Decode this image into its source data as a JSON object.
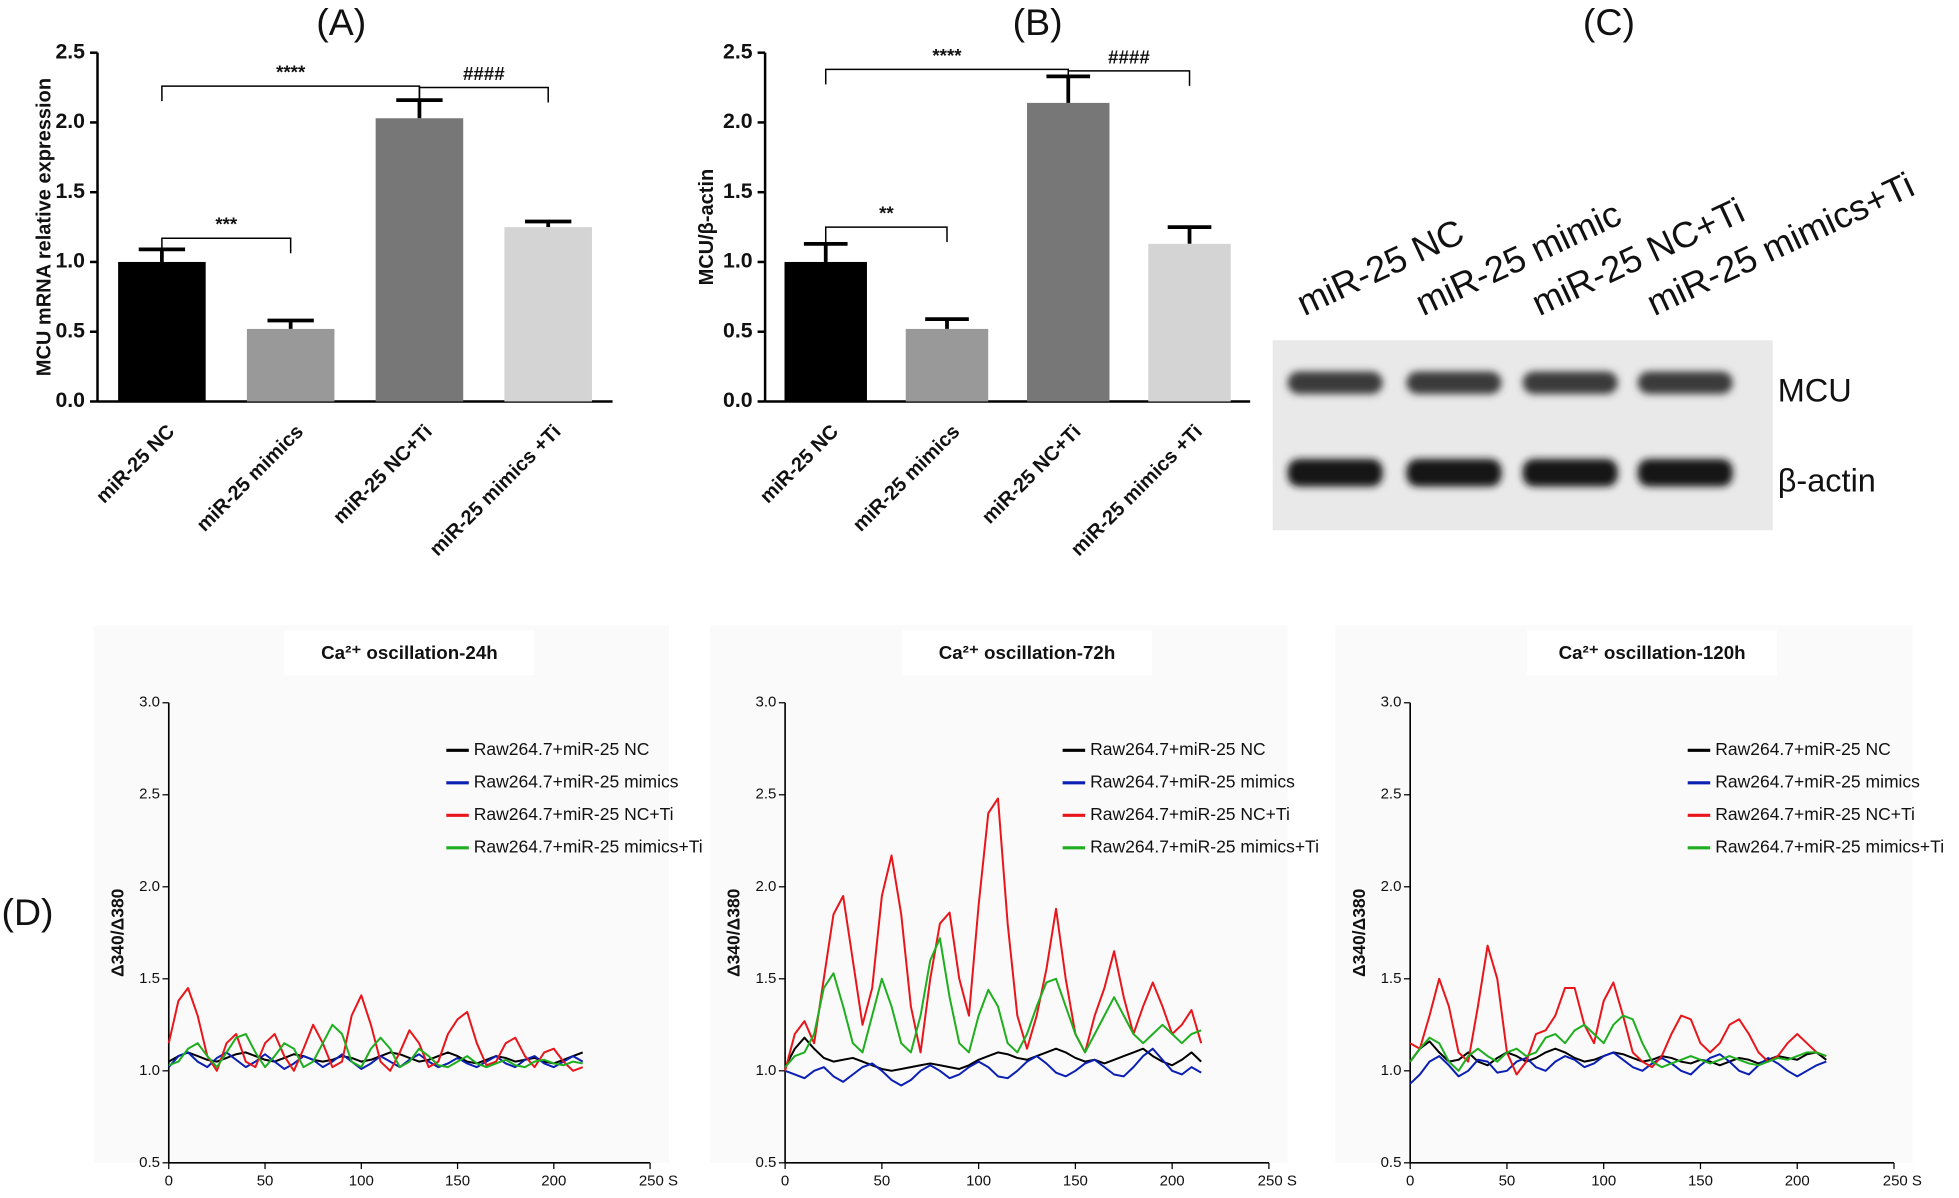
{
  "chart_data": [
    {
      "type": "bar",
      "title": "(A)",
      "y_label": "MCU mRNA relative expression",
      "categories": [
        "miR-25 NC",
        "miR-25 mimics",
        "miR-25 NC+Ti",
        "miR-25 mimics +Ti"
      ],
      "values": [
        1.0,
        0.52,
        2.03,
        1.25
      ],
      "errors": [
        0.09,
        0.06,
        0.13,
        0.04
      ],
      "colors": [
        "#000000",
        "#999999",
        "#777777",
        "#d4d4d4"
      ],
      "ylim": [
        0,
        2.5
      ],
      "yticks": [
        {
          "value": 0,
          "label": "0.0"
        },
        0.5,
        {
          "value": 1,
          "label": "1.0"
        },
        1.5,
        {
          "value": 2,
          "label": "2.0"
        },
        2.5
      ],
      "annotations": [
        "****",
        "####",
        "***"
      ]
    },
    {
      "type": "bar",
      "title": "(B)",
      "y_label": "MCU/β-actin",
      "categories": [
        "miR-25 NC",
        "miR-25 mimics",
        "miR-25 NC+Ti",
        "miR-25 mimics +Ti"
      ],
      "values": [
        1.0,
        0.52,
        2.14,
        1.13
      ],
      "errors": [
        0.13,
        0.07,
        0.19,
        0.12
      ],
      "colors": [
        "#000000",
        "#999999",
        "#777777",
        "#d4d4d4"
      ],
      "ylim": [
        0,
        2.5
      ],
      "yticks": [
        {
          "value": 0,
          "label": "0.0"
        },
        0.5,
        {
          "value": 1,
          "label": "1.0"
        },
        1.5,
        {
          "value": 2,
          "label": "2.0"
        },
        2.5
      ],
      "annotations": [
        "****",
        "####",
        "**"
      ]
    },
    {
      "type": "blot",
      "title": "(C)",
      "lanes": [
        "miR-25 NC",
        "miR-25 mimic",
        "miR-25 NC+Ti",
        "miR-25 mimics+Ti"
      ],
      "bands": [
        "MCU",
        "β-actin"
      ]
    },
    {
      "type": "line",
      "panel_label": "(D)",
      "title": "Ca²⁺ oscillation-24h",
      "y_label": "Δ340/Δ380",
      "legend": "upper right",
      "x": [
        0,
        5,
        10,
        15,
        20,
        25,
        30,
        35,
        40,
        45,
        50,
        55,
        60,
        65,
        70,
        75,
        80,
        85,
        90,
        95,
        100,
        105,
        110,
        115,
        120,
        125,
        130,
        135,
        140,
        145,
        150,
        155,
        160,
        165,
        170,
        175,
        180,
        185,
        190,
        195,
        200,
        205,
        210,
        215
      ],
      "xlim": [
        0,
        250
      ],
      "xticks": [
        0,
        50,
        100,
        150,
        200,
        {
          "value": 250,
          "label": "250 S"
        }
      ],
      "ylim": [
        0.5,
        3.0
      ],
      "yticks": [
        0.5,
        {
          "value": 1,
          "label": "1.0"
        },
        1.5,
        {
          "value": 2,
          "label": "2.0"
        },
        2.5,
        {
          "value": 3,
          "label": "3.0"
        }
      ],
      "series": [
        {
          "name": "Raw264.7+miR-25 NC",
          "color": "#000000",
          "values": [
            1.05,
            1.08,
            1.1,
            1.08,
            1.06,
            1.05,
            1.07,
            1.09,
            1.1,
            1.08,
            1.06,
            1.05,
            1.07,
            1.09,
            1.08,
            1.06,
            1.05,
            1.06,
            1.08,
            1.07,
            1.05,
            1.06,
            1.08,
            1.1,
            1.09,
            1.07,
            1.05,
            1.06,
            1.08,
            1.1,
            1.08,
            1.05,
            1.04,
            1.06,
            1.08,
            1.07,
            1.05,
            1.06,
            1.07,
            1.05,
            1.04,
            1.06,
            1.08,
            1.1
          ]
        },
        {
          "name": "Raw264.7+miR-25 mimics",
          "color": "#0b1fb3",
          "values": [
            1.02,
            1.08,
            1.1,
            1.05,
            1.02,
            1.07,
            1.1,
            1.06,
            1.02,
            1.05,
            1.09,
            1.05,
            1.01,
            1.04,
            1.08,
            1.06,
            1.02,
            1.05,
            1.09,
            1.05,
            1.01,
            1.04,
            1.08,
            1.05,
            1.02,
            1.06,
            1.09,
            1.05,
            1.02,
            1.04,
            1.07,
            1.04,
            1.02,
            1.05,
            1.08,
            1.04,
            1.02,
            1.06,
            1.08,
            1.04,
            1.02,
            1.05,
            1.08,
            1.05
          ]
        },
        {
          "name": "Raw264.7+miR-25 NC+Ti",
          "color": "#e8161b",
          "values": [
            1.15,
            1.38,
            1.45,
            1.3,
            1.08,
            1.0,
            1.15,
            1.2,
            1.05,
            1.02,
            1.15,
            1.2,
            1.08,
            1.0,
            1.12,
            1.25,
            1.15,
            1.02,
            1.05,
            1.3,
            1.41,
            1.25,
            1.05,
            1.0,
            1.1,
            1.22,
            1.15,
            1.02,
            1.05,
            1.2,
            1.28,
            1.32,
            1.15,
            1.03,
            1.05,
            1.15,
            1.18,
            1.08,
            1.02,
            1.1,
            1.12,
            1.05,
            1.0,
            1.02
          ]
        },
        {
          "name": "Raw264.7+miR-25 mimics+Ti",
          "color": "#1fae1f",
          "values": [
            1.03,
            1.05,
            1.12,
            1.15,
            1.08,
            1.02,
            1.1,
            1.18,
            1.2,
            1.1,
            1.02,
            1.08,
            1.15,
            1.12,
            1.02,
            1.05,
            1.15,
            1.25,
            1.2,
            1.05,
            1.02,
            1.12,
            1.18,
            1.12,
            1.02,
            1.05,
            1.12,
            1.08,
            1.03,
            1.02,
            1.05,
            1.08,
            1.04,
            1.02,
            1.04,
            1.06,
            1.03,
            1.02,
            1.05,
            1.06,
            1.04,
            1.03,
            1.05,
            1.04
          ]
        }
      ]
    },
    {
      "type": "line",
      "title": "Ca²⁺ oscillation-72h",
      "y_label": "Δ340/Δ380",
      "legend": "upper right",
      "x": [
        0,
        5,
        10,
        15,
        20,
        25,
        30,
        35,
        40,
        45,
        50,
        55,
        60,
        65,
        70,
        75,
        80,
        85,
        90,
        95,
        100,
        105,
        110,
        115,
        120,
        125,
        130,
        135,
        140,
        145,
        150,
        155,
        160,
        165,
        170,
        175,
        180,
        185,
        190,
        195,
        200,
        205,
        210,
        215
      ],
      "xlim": [
        0,
        250
      ],
      "xticks": [
        0,
        50,
        100,
        150,
        200,
        {
          "value": 250,
          "label": "250 S"
        }
      ],
      "ylim": [
        0.5,
        3.0
      ],
      "yticks": [
        0.5,
        {
          "value": 1,
          "label": "1.0"
        },
        1.5,
        {
          "value": 2,
          "label": "2.0"
        },
        2.5,
        {
          "value": 3,
          "label": "3.0"
        }
      ],
      "series": [
        {
          "name": "Raw264.7+miR-25 NC",
          "color": "#000000",
          "values": [
            1.02,
            1.12,
            1.18,
            1.12,
            1.07,
            1.05,
            1.06,
            1.07,
            1.05,
            1.03,
            1.01,
            1.0,
            1.01,
            1.02,
            1.03,
            1.04,
            1.03,
            1.02,
            1.01,
            1.03,
            1.06,
            1.08,
            1.1,
            1.09,
            1.07,
            1.06,
            1.08,
            1.1,
            1.12,
            1.1,
            1.07,
            1.05,
            1.06,
            1.04,
            1.06,
            1.08,
            1.1,
            1.12,
            1.08,
            1.05,
            1.03,
            1.06,
            1.1,
            1.05
          ]
        },
        {
          "name": "Raw264.7+miR-25 mimics",
          "color": "#0b1fb3",
          "values": [
            1.0,
            0.98,
            0.96,
            1.0,
            1.02,
            0.97,
            0.94,
            0.98,
            1.02,
            1.04,
            1.0,
            0.95,
            0.92,
            0.95,
            1.0,
            1.03,
            1.0,
            0.96,
            0.98,
            1.02,
            1.05,
            1.02,
            0.97,
            0.96,
            1.0,
            1.05,
            1.08,
            1.04,
            0.99,
            0.97,
            1.0,
            1.04,
            1.06,
            1.02,
            0.98,
            0.97,
            1.02,
            1.08,
            1.12,
            1.06,
            1.0,
            0.98,
            1.02,
            0.99
          ]
        },
        {
          "name": "Raw264.7+miR-25 NC+Ti",
          "color": "#e8161b",
          "values": [
            1.0,
            1.2,
            1.27,
            1.15,
            1.5,
            1.85,
            1.95,
            1.6,
            1.25,
            1.45,
            1.95,
            2.17,
            1.85,
            1.35,
            1.1,
            1.5,
            1.8,
            1.86,
            1.5,
            1.3,
            1.9,
            2.4,
            2.48,
            1.8,
            1.3,
            1.12,
            1.3,
            1.55,
            1.88,
            1.5,
            1.2,
            1.1,
            1.3,
            1.45,
            1.65,
            1.4,
            1.2,
            1.35,
            1.48,
            1.35,
            1.2,
            1.25,
            1.33,
            1.15
          ]
        },
        {
          "name": "Raw264.7+miR-25 mimics+Ti",
          "color": "#1fae1f",
          "values": [
            1.02,
            1.08,
            1.1,
            1.2,
            1.45,
            1.53,
            1.35,
            1.15,
            1.1,
            1.3,
            1.5,
            1.35,
            1.15,
            1.1,
            1.3,
            1.6,
            1.72,
            1.4,
            1.15,
            1.1,
            1.3,
            1.44,
            1.35,
            1.15,
            1.1,
            1.2,
            1.35,
            1.48,
            1.5,
            1.35,
            1.2,
            1.1,
            1.2,
            1.3,
            1.4,
            1.3,
            1.2,
            1.15,
            1.2,
            1.25,
            1.2,
            1.15,
            1.2,
            1.22
          ]
        }
      ]
    },
    {
      "type": "line",
      "title": "Ca²⁺ oscillation-120h",
      "y_label": "Δ340/Δ380",
      "legend": "upper right",
      "x": [
        0,
        5,
        10,
        15,
        20,
        25,
        30,
        35,
        40,
        45,
        50,
        55,
        60,
        65,
        70,
        75,
        80,
        85,
        90,
        95,
        100,
        105,
        110,
        115,
        120,
        125,
        130,
        135,
        140,
        145,
        150,
        155,
        160,
        165,
        170,
        175,
        180,
        185,
        190,
        195,
        200,
        205,
        210,
        215
      ],
      "xlim": [
        0,
        250
      ],
      "xticks": [
        0,
        50,
        100,
        150,
        200,
        {
          "value": 250,
          "label": "250 S"
        }
      ],
      "ylim": [
        0.5,
        3.0
      ],
      "yticks": [
        0.5,
        {
          "value": 1,
          "label": "1.0"
        },
        1.5,
        {
          "value": 2,
          "label": "2.0"
        },
        2.5,
        {
          "value": 3,
          "label": "3.0"
        }
      ],
      "series": [
        {
          "name": "Raw264.7+miR-25 NC",
          "color": "#000000",
          "values": [
            1.05,
            1.12,
            1.16,
            1.1,
            1.05,
            1.06,
            1.1,
            1.05,
            1.03,
            1.07,
            1.1,
            1.08,
            1.05,
            1.07,
            1.1,
            1.12,
            1.1,
            1.07,
            1.05,
            1.06,
            1.08,
            1.1,
            1.09,
            1.07,
            1.05,
            1.06,
            1.08,
            1.07,
            1.05,
            1.04,
            1.06,
            1.05,
            1.03,
            1.05,
            1.07,
            1.06,
            1.04,
            1.06,
            1.08,
            1.07,
            1.06,
            1.09,
            1.1,
            1.06
          ]
        },
        {
          "name": "Raw264.7+miR-25 mimics",
          "color": "#0b1fb3",
          "values": [
            0.93,
            0.98,
            1.05,
            1.08,
            1.03,
            0.97,
            1.0,
            1.06,
            1.05,
            0.99,
            1.0,
            1.05,
            1.07,
            1.02,
            1.0,
            1.05,
            1.08,
            1.06,
            1.02,
            1.04,
            1.08,
            1.1,
            1.06,
            1.02,
            1.0,
            1.04,
            1.07,
            1.04,
            1.0,
            0.98,
            1.03,
            1.07,
            1.09,
            1.05,
            1.0,
            0.98,
            1.03,
            1.07,
            1.04,
            1.0,
            0.97,
            1.0,
            1.03,
            1.05
          ]
        },
        {
          "name": "Raw264.7+miR-25 NC+Ti",
          "color": "#e8161b",
          "values": [
            1.15,
            1.12,
            1.3,
            1.5,
            1.35,
            1.1,
            1.05,
            1.35,
            1.68,
            1.5,
            1.1,
            0.98,
            1.05,
            1.2,
            1.22,
            1.3,
            1.45,
            1.45,
            1.25,
            1.15,
            1.38,
            1.48,
            1.3,
            1.1,
            1.05,
            1.02,
            1.08,
            1.2,
            1.3,
            1.28,
            1.15,
            1.1,
            1.15,
            1.25,
            1.28,
            1.2,
            1.1,
            1.05,
            1.08,
            1.15,
            1.2,
            1.15,
            1.1,
            1.08
          ]
        },
        {
          "name": "Raw264.7+miR-25 mimics+Ti",
          "color": "#1fae1f",
          "values": [
            1.05,
            1.12,
            1.18,
            1.15,
            1.05,
            1.0,
            1.08,
            1.12,
            1.08,
            1.05,
            1.1,
            1.12,
            1.08,
            1.1,
            1.18,
            1.2,
            1.15,
            1.22,
            1.25,
            1.2,
            1.15,
            1.25,
            1.3,
            1.28,
            1.15,
            1.05,
            1.02,
            1.04,
            1.06,
            1.08,
            1.06,
            1.04,
            1.06,
            1.08,
            1.06,
            1.04,
            1.03,
            1.05,
            1.07,
            1.06,
            1.08,
            1.1,
            1.1,
            1.08
          ]
        }
      ]
    }
  ]
}
